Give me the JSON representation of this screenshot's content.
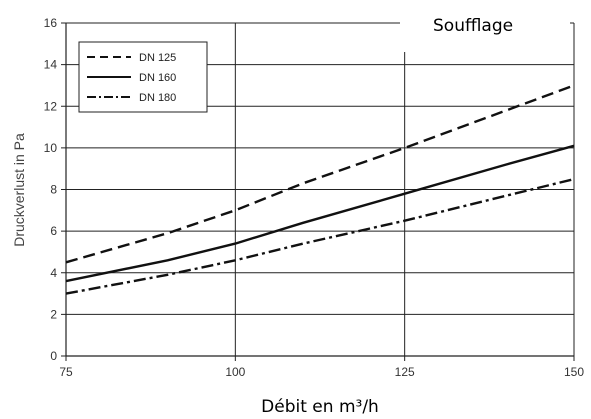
{
  "chart_data": {
    "type": "line",
    "title": "Soufflage",
    "xlabel": "Débit en m³/h",
    "ylabel": "Druckverlust in Pa",
    "xlim": [
      75,
      150
    ],
    "ylim": [
      0,
      16
    ],
    "xticks": [
      "75",
      "100",
      "125",
      "150"
    ],
    "yticks": [
      "0",
      "2",
      "4",
      "6",
      "8",
      "10",
      "12",
      "14",
      "16"
    ],
    "grid": true,
    "legend_position": "top-left",
    "series": [
      {
        "name": "DN 125",
        "style": "dashed",
        "x": [
          75,
          90,
          100,
          110,
          125,
          140,
          150
        ],
        "y": [
          4.5,
          5.9,
          7.0,
          8.3,
          10.0,
          11.8,
          13.0
        ]
      },
      {
        "name": "DN 160",
        "style": "solid",
        "x": [
          75,
          90,
          100,
          110,
          125,
          140,
          150
        ],
        "y": [
          3.6,
          4.6,
          5.4,
          6.4,
          7.8,
          9.2,
          10.1
        ]
      },
      {
        "name": "DN 180",
        "style": "dash-dot",
        "x": [
          75,
          90,
          100,
          110,
          125,
          140,
          150
        ],
        "y": [
          3.0,
          3.9,
          4.6,
          5.4,
          6.5,
          7.7,
          8.5
        ]
      }
    ]
  }
}
